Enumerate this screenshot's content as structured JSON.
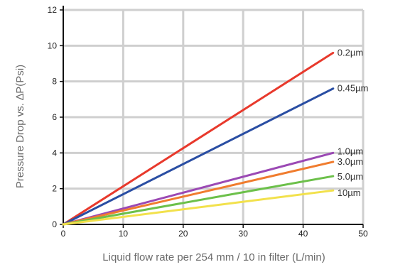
{
  "chart_data": {
    "type": "line",
    "xlabel": "Liquid flow rate per 254 mm / 10 in filter (L/min)",
    "ylabel": "Pressure Drop vs. ∆P(Psi)",
    "xlim": [
      0,
      50
    ],
    "ylim": [
      0,
      12
    ],
    "x_ticks": [
      "0",
      "10",
      "20",
      "30",
      "40",
      "50"
    ],
    "y_ticks": [
      "0",
      "2",
      "4",
      "6",
      "8",
      "10",
      "12"
    ],
    "grid": true,
    "legend": "inline labels at line ends (right)",
    "series": [
      {
        "name": "0.2µm",
        "color": "#e8392c",
        "x": [
          0,
          45
        ],
        "y": [
          0,
          9.6
        ]
      },
      {
        "name": "0.45µm",
        "color": "#2a4ea3",
        "x": [
          0,
          45
        ],
        "y": [
          0,
          7.6
        ]
      },
      {
        "name": "1.0µm",
        "color": "#9b49b4",
        "x": [
          0,
          45
        ],
        "y": [
          0,
          4.0
        ]
      },
      {
        "name": "3.0µm",
        "color": "#f07c2e",
        "x": [
          0,
          45
        ],
        "y": [
          0,
          3.5
        ]
      },
      {
        "name": "5.0µm",
        "color": "#6cc04a",
        "x": [
          0,
          45
        ],
        "y": [
          0,
          2.7
        ]
      },
      {
        "name": "10µm",
        "color": "#f2e14c",
        "x": [
          0,
          45
        ],
        "y": [
          0,
          1.9
        ]
      }
    ]
  }
}
